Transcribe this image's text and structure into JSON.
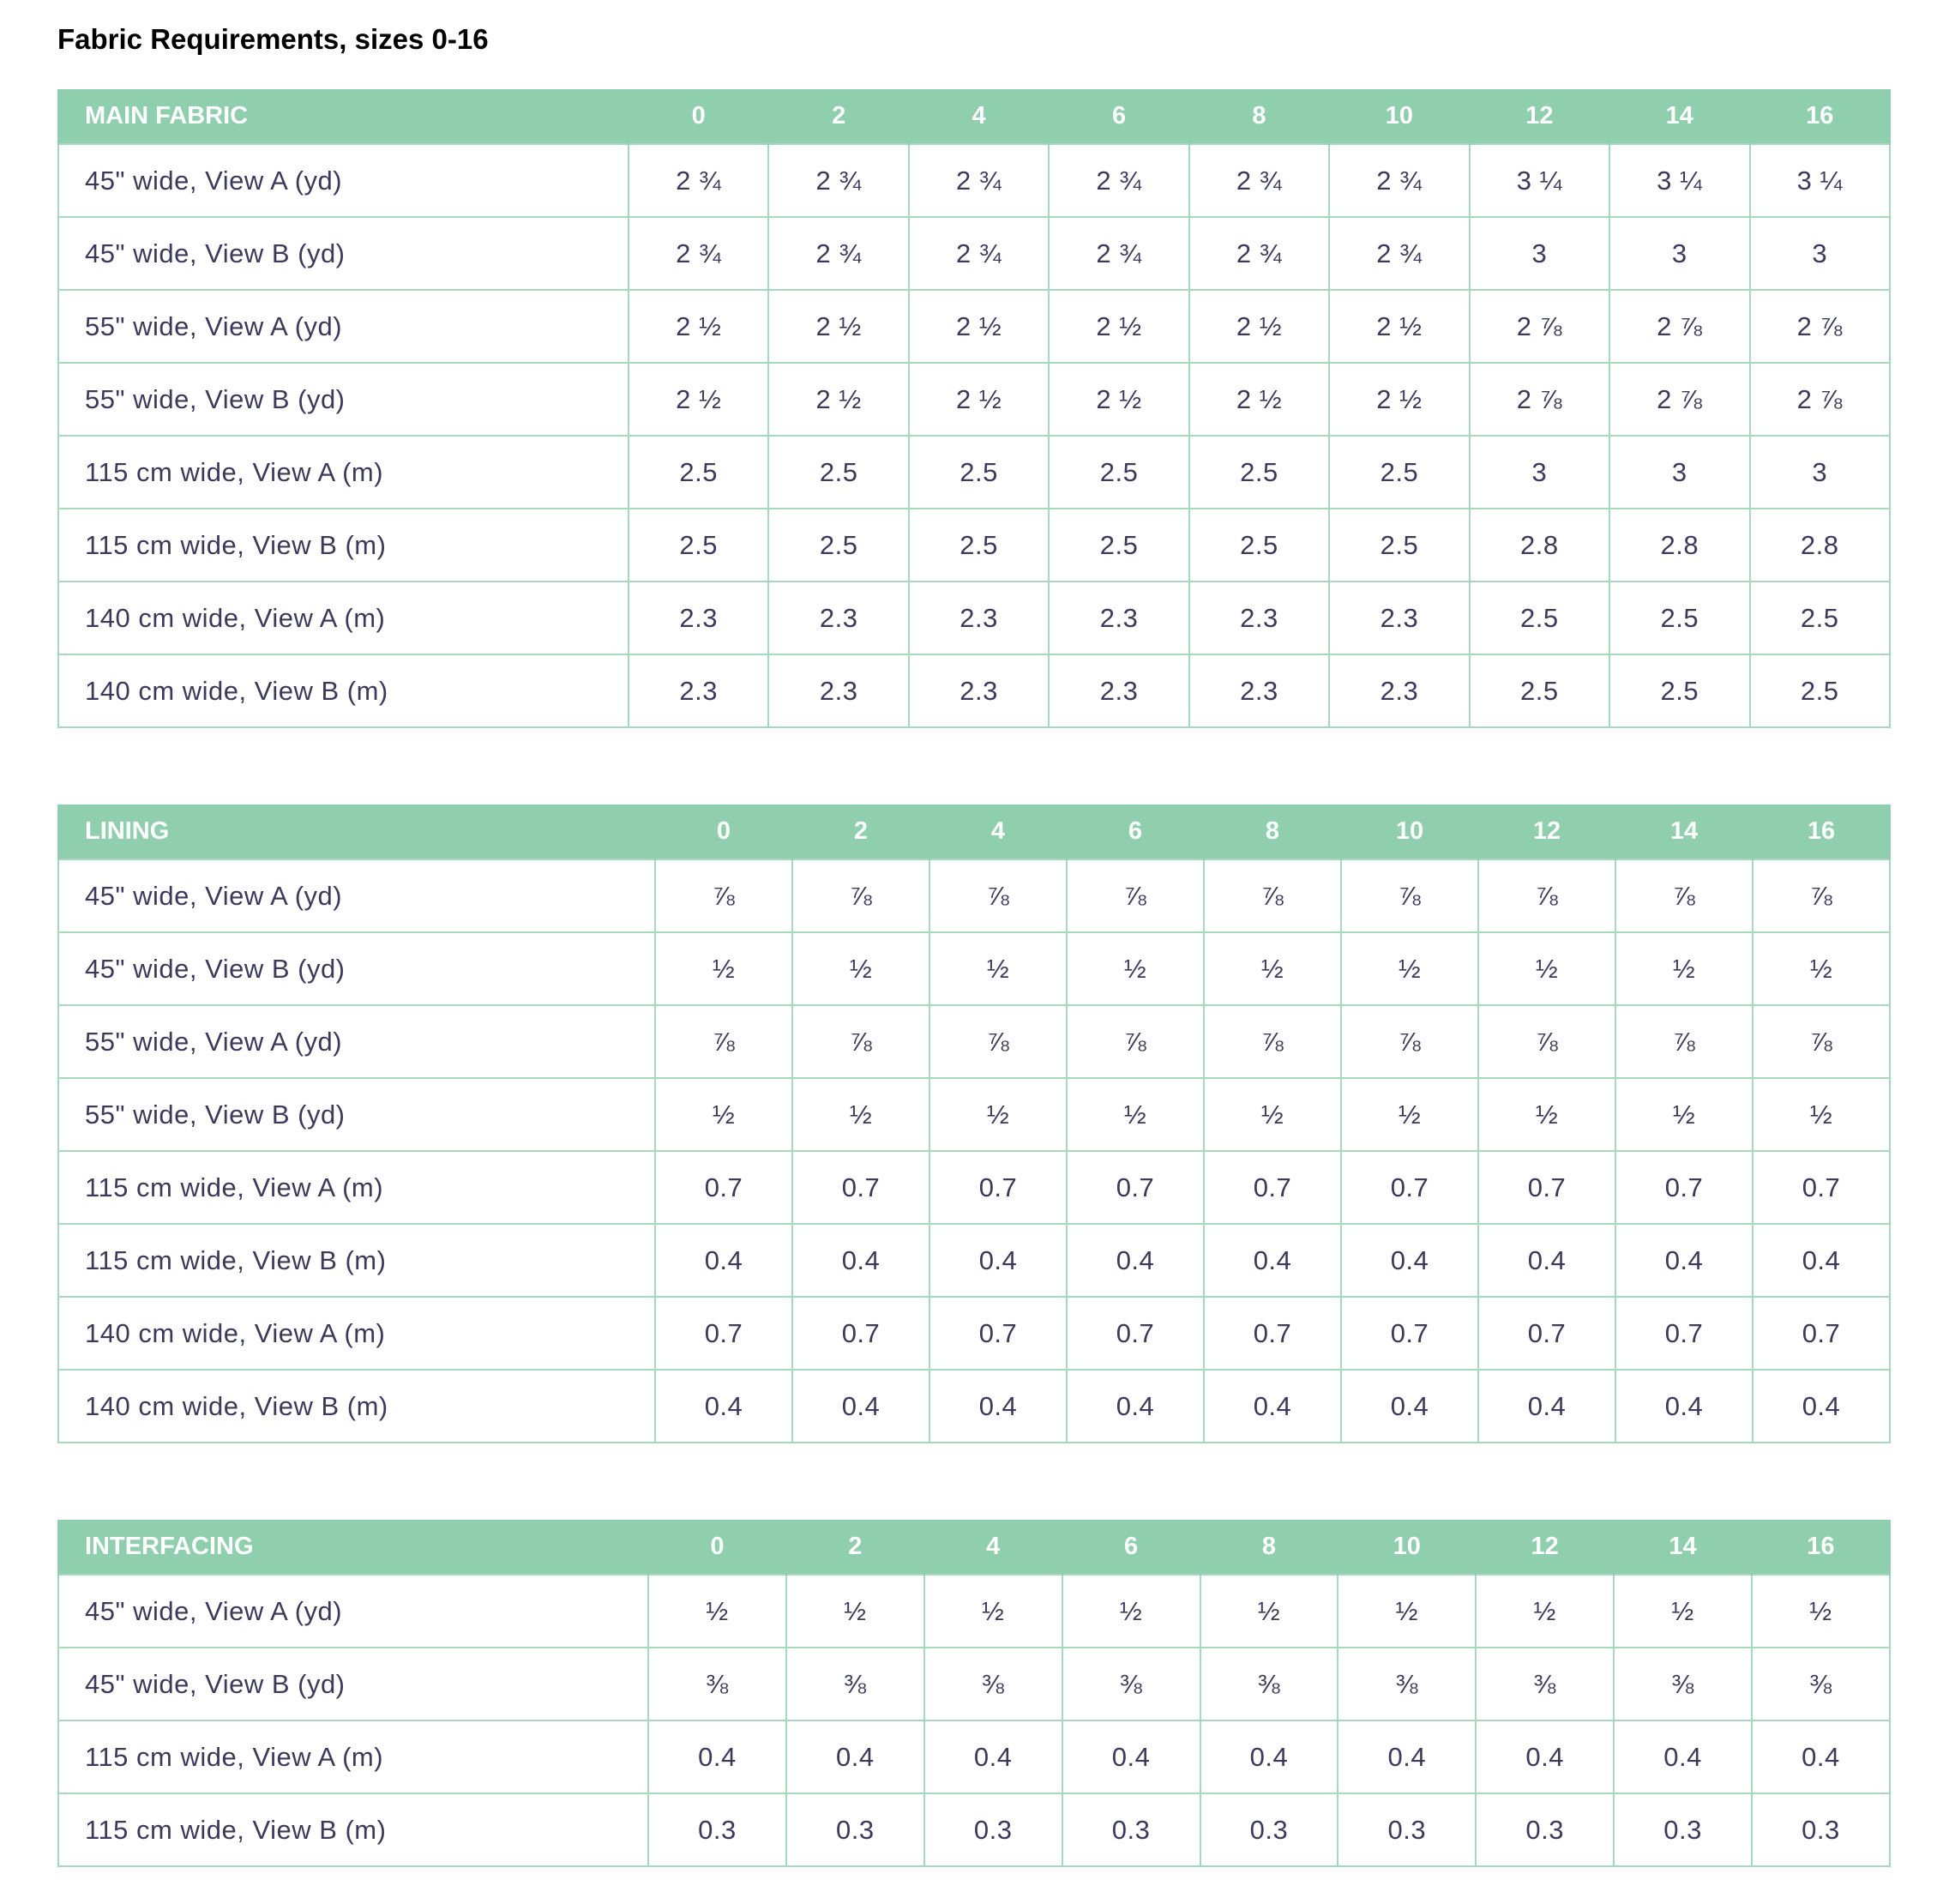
{
  "title": "Fabric Requirements, sizes 0-16",
  "sizes": [
    "0",
    "2",
    "4",
    "6",
    "8",
    "10",
    "12",
    "14",
    "16"
  ],
  "sections": [
    {
      "title": "MAIN FABRIC",
      "rows": [
        {
          "label": "45\" wide, View A (yd)",
          "values": [
            "2 ¾",
            "2 ¾",
            "2 ¾",
            "2 ¾",
            "2 ¾",
            "2 ¾",
            "3 ¼",
            "3 ¼",
            "3 ¼"
          ]
        },
        {
          "label": "45\" wide, View B (yd)",
          "values": [
            "2 ¾",
            "2 ¾",
            "2 ¾",
            "2 ¾",
            "2 ¾",
            "2 ¾",
            "3",
            "3",
            "3"
          ]
        },
        {
          "label": "55\" wide, View A (yd)",
          "values": [
            "2 ½",
            "2 ½",
            "2 ½",
            "2 ½",
            "2 ½",
            "2 ½",
            "2 ⅞",
            "2 ⅞",
            "2 ⅞"
          ]
        },
        {
          "label": "55\" wide, View B (yd)",
          "values": [
            "2 ½",
            "2 ½",
            "2 ½",
            "2 ½",
            "2 ½",
            "2 ½",
            "2 ⅞",
            "2 ⅞",
            "2 ⅞"
          ]
        },
        {
          "label": "115 cm wide, View A (m)",
          "values": [
            "2.5",
            "2.5",
            "2.5",
            "2.5",
            "2.5",
            "2.5",
            "3",
            "3",
            "3"
          ]
        },
        {
          "label": "115 cm wide, View B (m)",
          "values": [
            "2.5",
            "2.5",
            "2.5",
            "2.5",
            "2.5",
            "2.5",
            "2.8",
            "2.8",
            "2.8"
          ]
        },
        {
          "label": "140 cm wide, View A (m)",
          "values": [
            "2.3",
            "2.3",
            "2.3",
            "2.3",
            "2.3",
            "2.3",
            "2.5",
            "2.5",
            "2.5"
          ]
        },
        {
          "label": "140 cm wide, View B (m)",
          "values": [
            "2.3",
            "2.3",
            "2.3",
            "2.3",
            "2.3",
            "2.3",
            "2.5",
            "2.5",
            "2.5"
          ]
        }
      ]
    },
    {
      "title": "LINING",
      "rows": [
        {
          "label": "45\" wide, View A (yd)",
          "values": [
            "⅞",
            "⅞",
            "⅞",
            "⅞",
            "⅞",
            "⅞",
            "⅞",
            "⅞",
            "⅞"
          ]
        },
        {
          "label": "45\" wide, View B (yd)",
          "values": [
            "½",
            "½",
            "½",
            "½",
            "½",
            "½",
            "½",
            "½",
            "½"
          ]
        },
        {
          "label": "55\" wide, View A (yd)",
          "values": [
            "⅞",
            "⅞",
            "⅞",
            "⅞",
            "⅞",
            "⅞",
            "⅞",
            "⅞",
            "⅞"
          ]
        },
        {
          "label": "55\" wide, View B (yd)",
          "values": [
            "½",
            "½",
            "½",
            "½",
            "½",
            "½",
            "½",
            "½",
            "½"
          ]
        },
        {
          "label": "115 cm wide, View A (m)",
          "values": [
            "0.7",
            "0.7",
            "0.7",
            "0.7",
            "0.7",
            "0.7",
            "0.7",
            "0.7",
            "0.7"
          ]
        },
        {
          "label": "115 cm wide, View B (m)",
          "values": [
            "0.4",
            "0.4",
            "0.4",
            "0.4",
            "0.4",
            "0.4",
            "0.4",
            "0.4",
            "0.4"
          ]
        },
        {
          "label": "140 cm wide, View A (m)",
          "values": [
            "0.7",
            "0.7",
            "0.7",
            "0.7",
            "0.7",
            "0.7",
            "0.7",
            "0.7",
            "0.7"
          ]
        },
        {
          "label": "140 cm wide, View B (m)",
          "values": [
            "0.4",
            "0.4",
            "0.4",
            "0.4",
            "0.4",
            "0.4",
            "0.4",
            "0.4",
            "0.4"
          ]
        }
      ]
    },
    {
      "title": "INTERFACING",
      "rows": [
        {
          "label": "45\" wide, View A (yd)",
          "values": [
            "½",
            "½",
            "½",
            "½",
            "½",
            "½",
            "½",
            "½",
            "½"
          ]
        },
        {
          "label": "45\" wide, View B (yd)",
          "values": [
            "⅜",
            "⅜",
            "⅜",
            "⅜",
            "⅜",
            "⅜",
            "⅜",
            "⅜",
            "⅜"
          ]
        },
        {
          "label": "115 cm wide, View A (m)",
          "values": [
            "0.4",
            "0.4",
            "0.4",
            "0.4",
            "0.4",
            "0.4",
            "0.4",
            "0.4",
            "0.4"
          ]
        },
        {
          "label": "115 cm wide, View B (m)",
          "values": [
            "0.3",
            "0.3",
            "0.3",
            "0.3",
            "0.3",
            "0.3",
            "0.3",
            "0.3",
            "0.3"
          ]
        }
      ]
    }
  ],
  "colors": {
    "header_background": "#8fcfad",
    "border": "#a6d8bd",
    "cell_text": "#3c3a5a",
    "header_text": "#ffffff",
    "title_text": "#000000"
  }
}
